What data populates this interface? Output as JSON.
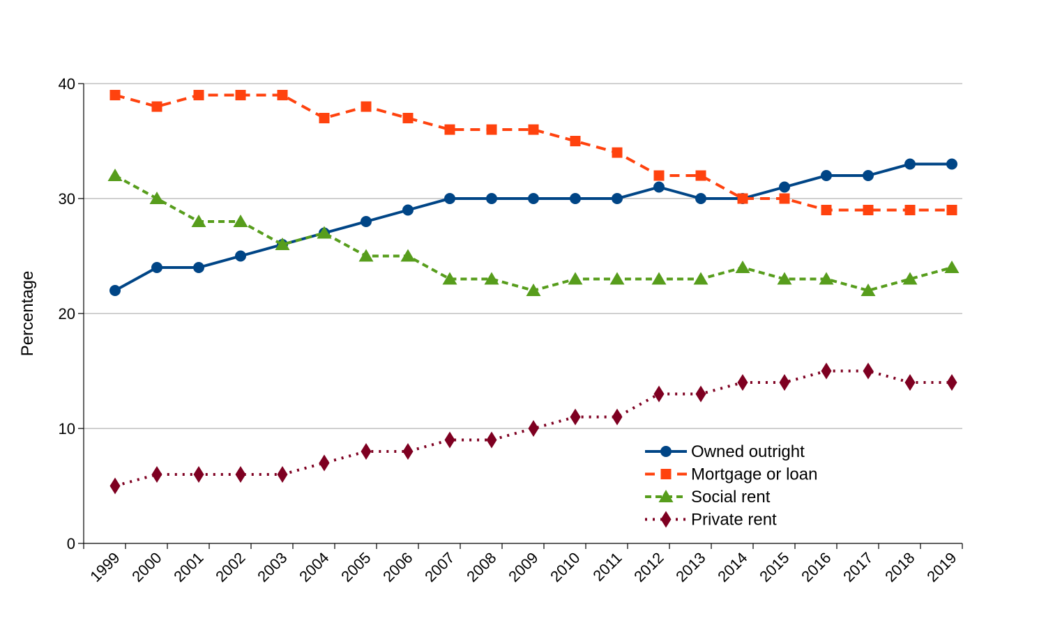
{
  "chart_data": {
    "type": "line",
    "title": "",
    "xlabel": "",
    "ylabel": "Percentage",
    "ylim": [
      0,
      40
    ],
    "yticks": [
      0,
      10,
      20,
      30,
      40
    ],
    "grid": true,
    "legend_position": "bottom-right",
    "categories": [
      "1999",
      "2000",
      "2001",
      "2002",
      "2003",
      "2004",
      "2005",
      "2006",
      "2007",
      "2008",
      "2009",
      "2010",
      "2011",
      "2012",
      "2013",
      "2014",
      "2015",
      "2016",
      "2017",
      "2018",
      "2019"
    ],
    "series": [
      {
        "name": "Owned outright",
        "color": "#004586",
        "dash": "solid",
        "marker": "circle",
        "values": [
          22,
          24,
          24,
          25,
          26,
          27,
          28,
          29,
          30,
          30,
          30,
          30,
          30,
          31,
          30,
          30,
          31,
          32,
          32,
          33,
          33
        ]
      },
      {
        "name": "Mortgage or loan",
        "color": "#ff420e",
        "dash": "dashed",
        "marker": "square",
        "values": [
          39,
          38,
          39,
          39,
          39,
          37,
          38,
          37,
          36,
          36,
          36,
          35,
          34,
          32,
          32,
          30,
          30,
          29,
          29,
          29,
          29
        ]
      },
      {
        "name": "Social rent",
        "color": "#579d1c",
        "dash": "short-dashed",
        "marker": "triangle",
        "values": [
          32,
          30,
          28,
          28,
          26,
          27,
          25,
          25,
          23,
          23,
          22,
          23,
          23,
          23,
          23,
          24,
          23,
          23,
          22,
          23,
          24
        ]
      },
      {
        "name": "Private rent",
        "color": "#7e0021",
        "dash": "dotted",
        "marker": "diamond",
        "values": [
          5,
          6,
          6,
          6,
          6,
          7,
          8,
          8,
          9,
          9,
          10,
          11,
          11,
          13,
          13,
          14,
          14,
          15,
          15,
          14,
          14
        ]
      }
    ]
  }
}
